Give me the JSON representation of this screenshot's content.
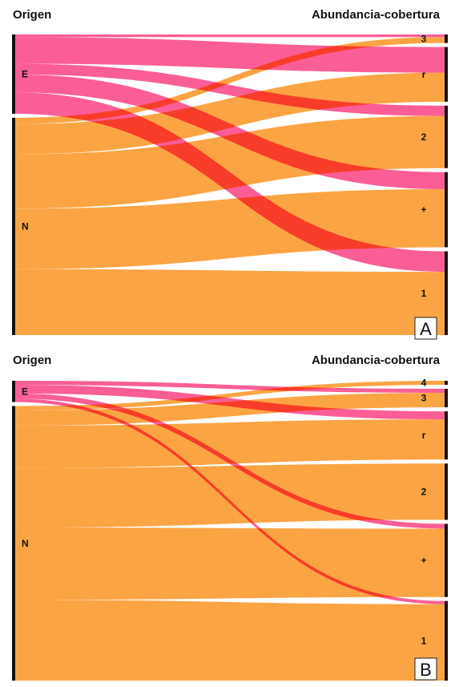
{
  "colors": {
    "native": "#fba444",
    "exotic": "#fb4c8c",
    "exotic_overlap": "#fb3c3c",
    "node": "#111111"
  },
  "panels": [
    {
      "letter": "A",
      "left_title": "Origen",
      "right_title": "Abundancia-cobertura",
      "sources": [
        {
          "id": "E",
          "label": "E"
        },
        {
          "id": "N",
          "label": "N"
        }
      ],
      "targets": [
        {
          "id": "3",
          "label": "3"
        },
        {
          "id": "r",
          "label": "r"
        },
        {
          "id": "2",
          "label": "2"
        },
        {
          "id": "+",
          "label": "+"
        },
        {
          "id": "1",
          "label": "1"
        }
      ],
      "links": [
        {
          "source": "E",
          "target": "3",
          "value": 3
        },
        {
          "source": "E",
          "target": "r",
          "value": 30
        },
        {
          "source": "E",
          "target": "2",
          "value": 12
        },
        {
          "source": "E",
          "target": "+",
          "value": 20
        },
        {
          "source": "E",
          "target": "1",
          "value": 24
        },
        {
          "source": "N",
          "target": "3",
          "value": 7
        },
        {
          "source": "N",
          "target": "r",
          "value": 34
        },
        {
          "source": "N",
          "target": "2",
          "value": 61
        },
        {
          "source": "N",
          "target": "+",
          "value": 68
        },
        {
          "source": "N",
          "target": "1",
          "value": 74
        }
      ]
    },
    {
      "letter": "B",
      "left_title": "Origen",
      "right_title": "Abundancia-cobertura",
      "sources": [
        {
          "id": "E",
          "label": "E"
        },
        {
          "id": "N",
          "label": "N"
        }
      ],
      "targets": [
        {
          "id": "4",
          "label": "4"
        },
        {
          "id": "3",
          "label": "3"
        },
        {
          "id": "r",
          "label": "r"
        },
        {
          "id": "2",
          "label": "2"
        },
        {
          "id": "+",
          "label": "+"
        },
        {
          "id": "1",
          "label": "1"
        }
      ],
      "links": [
        {
          "source": "E",
          "target": "3",
          "value": 5
        },
        {
          "source": "E",
          "target": "r",
          "value": 10
        },
        {
          "source": "E",
          "target": "+",
          "value": 6
        },
        {
          "source": "E",
          "target": "1",
          "value": 4
        },
        {
          "source": "N",
          "target": "4",
          "value": 5
        },
        {
          "source": "N",
          "target": "3",
          "value": 18
        },
        {
          "source": "N",
          "target": "r",
          "value": 50
        },
        {
          "source": "N",
          "target": "2",
          "value": 70
        },
        {
          "source": "N",
          "target": "+",
          "value": 85
        },
        {
          "source": "N",
          "target": "1",
          "value": 95
        }
      ]
    }
  ]
}
